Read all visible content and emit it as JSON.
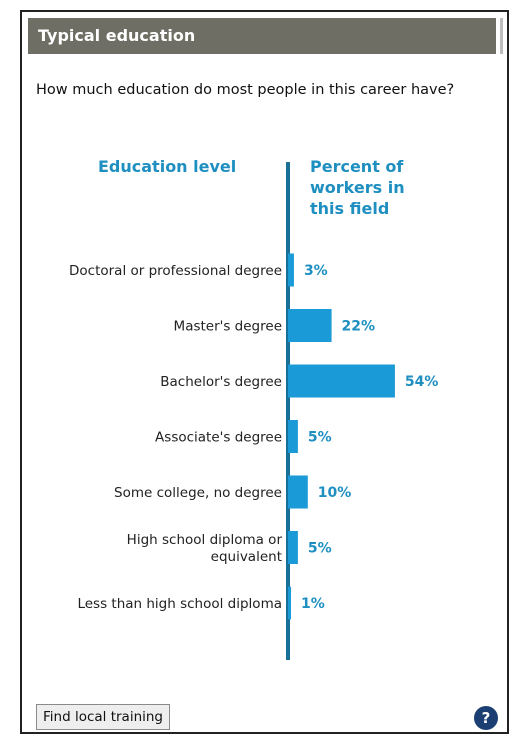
{
  "header": {
    "title": "Typical education"
  },
  "question": "How much education do most people in this career have?",
  "columns": {
    "left": "Education level",
    "right": "Percent of workers in this field"
  },
  "footer": {
    "button_label": "Find local training",
    "help_icon": "?"
  },
  "colors": {
    "accent": "#1e8fc0",
    "bar": "#1a9ad6",
    "axis": "#1a6f96",
    "header_bg": "#6e6e64"
  },
  "chart_data": {
    "type": "bar",
    "orientation": "horizontal",
    "categories": [
      [
        "Doctoral or professional degree"
      ],
      [
        "Master's degree"
      ],
      [
        "Bachelor's degree"
      ],
      [
        "Associate's degree"
      ],
      [
        "Some college, no degree"
      ],
      [
        "High school diploma or",
        "equivalent"
      ],
      [
        "Less than high school diploma"
      ]
    ],
    "values": [
      3,
      22,
      54,
      5,
      10,
      5,
      1
    ],
    "value_labels": [
      "3%",
      "22%",
      "54%",
      "5%",
      "10%",
      "5%",
      "1%"
    ],
    "xlabel": "Percent of workers in this field",
    "ylabel": "Education level"
  }
}
